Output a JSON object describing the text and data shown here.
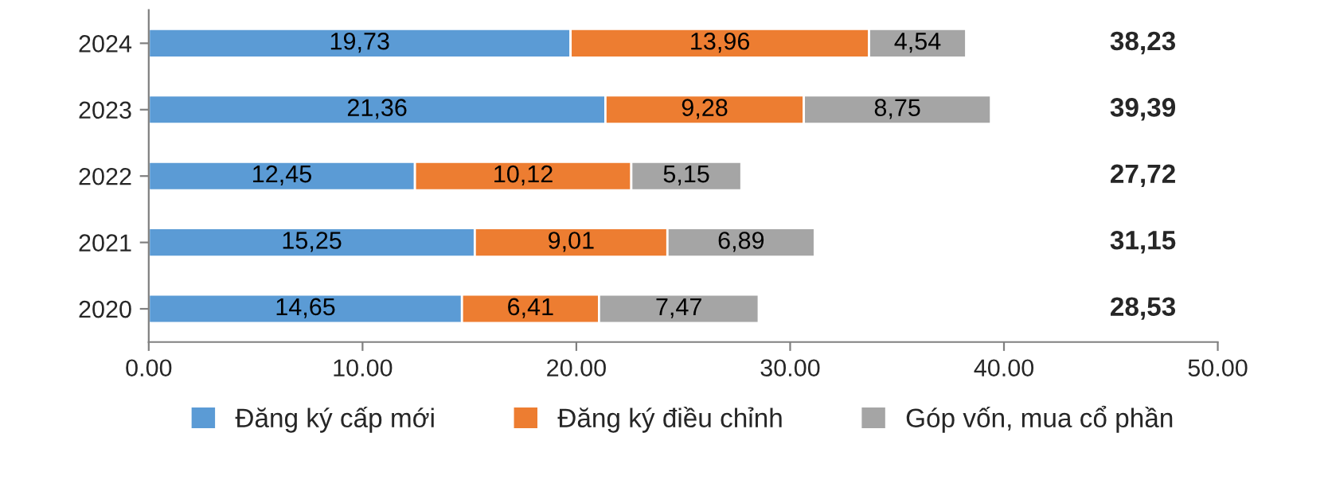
{
  "chart_data": {
    "type": "bar",
    "orientation": "horizontal",
    "stacked": true,
    "categories": [
      "2024",
      "2023",
      "2022",
      "2021",
      "2020"
    ],
    "series": [
      {
        "name": "Đăng ký cấp mới",
        "color": "#5b9bd5",
        "values": [
          19.73,
          21.36,
          12.45,
          15.25,
          14.65
        ],
        "value_labels": [
          "19,73",
          "21,36",
          "12,45",
          "15,25",
          "14,65"
        ]
      },
      {
        "name": "Đăng ký điều chỉnh",
        "color": "#ed7d31",
        "values": [
          13.96,
          9.28,
          10.12,
          9.01,
          6.41
        ],
        "value_labels": [
          "13,96",
          "9,28",
          "10,12",
          "9,01",
          "6,41"
        ]
      },
      {
        "name": "Góp vốn, mua cổ phần",
        "color": "#a5a5a5",
        "values": [
          4.54,
          8.75,
          5.15,
          6.89,
          7.47
        ],
        "value_labels": [
          "4,54",
          "8,75",
          "5,15",
          "6,89",
          "7,47"
        ]
      }
    ],
    "annotations": [
      "38,23",
      "39,39",
      "27,72",
      "31,15",
      "28,53"
    ],
    "xlim": [
      0,
      50
    ],
    "xticks": [
      {
        "value": 0,
        "label": "0.00"
      },
      {
        "value": 10,
        "label": "10.00"
      },
      {
        "value": 20,
        "label": "20.00"
      },
      {
        "value": 30,
        "label": "30.00"
      },
      {
        "value": 40,
        "label": "40.00"
      },
      {
        "value": 50,
        "label": "50.00"
      }
    ],
    "grid": false,
    "legend": "bottom"
  }
}
